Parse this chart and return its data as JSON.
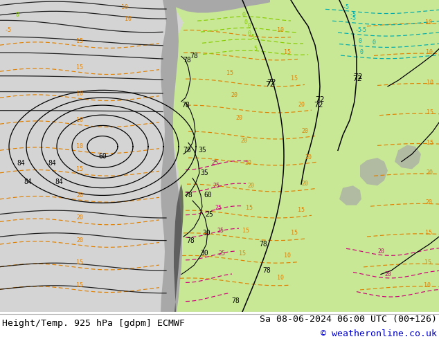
{
  "title_left": "Height/Temp. 925 hPa [gdpm] ECMWF",
  "title_right": "Sa 08-06-2024 06:00 UTC (00+126)",
  "copyright": "© weatheronline.co.uk",
  "fig_width": 6.34,
  "fig_height": 4.9,
  "dpi": 100,
  "title_fontsize": 9.5,
  "copyright_fontsize": 9.5,
  "copyright_color": "#0000cc",
  "title_color": "#000000",
  "bg_color": "#d8d8d8",
  "green_color": "#c8e896",
  "gray_color": "#a8a8a8",
  "dark_gray": "#787878",
  "footer_color": "#ffffff",
  "black": "#000000",
  "orange": "#e08000",
  "cyan": "#00aaaa",
  "green_line": "#88cc00",
  "magenta": "#cc0077",
  "red": "#dd0000"
}
